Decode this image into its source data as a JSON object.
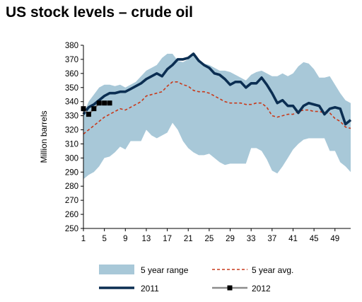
{
  "title": "US stock levels – crude oil",
  "chart_data": {
    "type": "line",
    "title": "US stock levels – crude oil",
    "ylabel": "Million barrels",
    "xlabel": "",
    "ylim": [
      250,
      380
    ],
    "yticks": [
      250,
      260,
      270,
      280,
      290,
      300,
      310,
      320,
      330,
      340,
      350,
      360,
      370,
      380
    ],
    "xlim": [
      1,
      52
    ],
    "xticks": [
      1,
      5,
      9,
      13,
      17,
      21,
      25,
      29,
      33,
      37,
      41,
      45,
      49
    ],
    "grid": false,
    "legend_position": "bottom",
    "range": {
      "name": "5 year range",
      "color": "#a8c8d8",
      "x": [
        1,
        2,
        3,
        4,
        5,
        6,
        7,
        8,
        9,
        10,
        11,
        12,
        13,
        14,
        15,
        16,
        17,
        18,
        19,
        20,
        21,
        22,
        23,
        24,
        25,
        26,
        27,
        28,
        29,
        30,
        31,
        32,
        33,
        34,
        35,
        36,
        37,
        38,
        39,
        40,
        41,
        42,
        43,
        44,
        45,
        46,
        47,
        48,
        49,
        50,
        51,
        52
      ],
      "low": [
        285,
        288,
        290,
        294,
        300,
        301,
        304,
        308,
        306,
        312,
        312,
        312,
        320,
        316,
        314,
        316,
        318,
        325,
        320,
        312,
        307,
        304,
        302,
        302,
        303,
        300,
        297,
        295,
        296,
        296,
        296,
        296,
        307,
        307,
        305,
        299,
        291,
        289,
        294,
        300,
        306,
        310,
        313,
        314,
        314,
        314,
        314,
        305,
        305,
        297,
        294,
        290
      ],
      "high": [
        331,
        340,
        345,
        350,
        352,
        352,
        351,
        352,
        350,
        352,
        354,
        358,
        362,
        364,
        366,
        371,
        374,
        374,
        369,
        368,
        370,
        374,
        370,
        367,
        366,
        364,
        362,
        362,
        361,
        359,
        357,
        355,
        359,
        361,
        362,
        360,
        358,
        358,
        360,
        358,
        360,
        365,
        368,
        367,
        363,
        357,
        357,
        358,
        352,
        346,
        341,
        339
      ]
    },
    "series": [
      {
        "name": "5 year avg.",
        "style": "dashed",
        "color": "#c8391a",
        "x": [
          1,
          2,
          3,
          4,
          5,
          6,
          7,
          8,
          9,
          10,
          11,
          12,
          13,
          14,
          15,
          16,
          17,
          18,
          19,
          20,
          21,
          22,
          23,
          24,
          25,
          26,
          27,
          28,
          29,
          30,
          31,
          32,
          33,
          34,
          35,
          36,
          37,
          38,
          39,
          40,
          41,
          42,
          43,
          44,
          45,
          46,
          47,
          48,
          49,
          50,
          51,
          52
        ],
        "values": [
          317,
          320,
          323,
          326,
          329,
          331,
          333,
          335,
          334,
          336,
          338,
          340,
          344,
          345,
          346,
          347,
          351,
          354,
          354,
          352,
          351,
          348,
          347,
          347,
          346,
          344,
          342,
          340,
          339,
          339,
          339,
          338,
          338,
          339,
          339,
          336,
          330,
          329,
          330,
          331,
          331,
          333,
          334,
          334,
          333,
          333,
          332,
          332,
          328,
          326,
          322,
          321
        ]
      },
      {
        "name": "2011",
        "style": "solid",
        "color": "#0b2e52",
        "x": [
          1,
          2,
          3,
          4,
          5,
          6,
          7,
          8,
          9,
          10,
          11,
          12,
          13,
          14,
          15,
          16,
          17,
          18,
          19,
          20,
          21,
          22,
          23,
          24,
          25,
          26,
          27,
          28,
          29,
          30,
          31,
          32,
          33,
          34,
          35,
          36,
          37,
          38,
          39,
          40,
          41,
          42,
          43,
          44,
          45,
          46,
          47,
          48,
          49,
          50,
          51,
          52
        ],
        "values": [
          331,
          336,
          338,
          341,
          344,
          346,
          346,
          347,
          347,
          349,
          351,
          353,
          356,
          358,
          360,
          358,
          363,
          366,
          370,
          370,
          371,
          374,
          369,
          366,
          364,
          360,
          359,
          356,
          352,
          354,
          354,
          350,
          353,
          353,
          357,
          352,
          346,
          339,
          341,
          337,
          337,
          332,
          337,
          339,
          338,
          337,
          331,
          335,
          336,
          335,
          324,
          327
        ]
      },
      {
        "name": "2012",
        "style": "solid-markers",
        "color": "#8c8c8c",
        "marker_color": "#000000",
        "x": [
          1,
          2,
          3,
          4,
          5,
          6
        ],
        "values": [
          335,
          331,
          335,
          339,
          339,
          339
        ]
      }
    ]
  }
}
